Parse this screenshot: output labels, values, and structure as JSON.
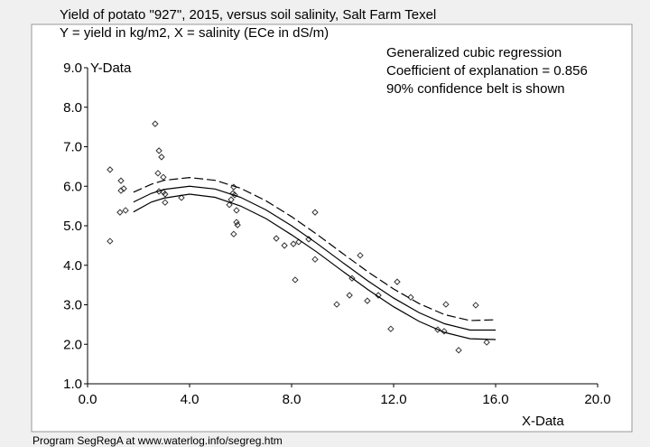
{
  "chart_data": {
    "type": "scatter",
    "title": "Yield of potato \"927\", 2015, versus soil salinity, Salt Farm Texel",
    "subtitle": "Y = yield in kg/m2,  X = salinity (ECe in dS/m)",
    "annotations": [
      "Generalized cubic regression",
      "Coefficient of explanation = 0.856",
      "90% confidence belt is shown"
    ],
    "x_label": "X-Data",
    "y_label": "Y-Data",
    "footer": "Program SegRegA at www.waterlog.info/segreg.htm",
    "xlim": [
      0,
      20
    ],
    "ylim": [
      1,
      9
    ],
    "xticks": [
      {
        "value": 0,
        "label": "0.0"
      },
      {
        "value": 4,
        "label": "4.0"
      },
      {
        "value": 8,
        "label": "8.0"
      },
      {
        "value": 12,
        "label": "12.0"
      },
      {
        "value": 16,
        "label": "16.0"
      },
      {
        "value": 20,
        "label": "20.0"
      }
    ],
    "yticks": [
      {
        "value": 1,
        "label": "1.0"
      },
      {
        "value": 2,
        "label": "2.0"
      },
      {
        "value": 3,
        "label": "3.0"
      },
      {
        "value": 4,
        "label": "4.0"
      },
      {
        "value": 5,
        "label": "5.0"
      },
      {
        "value": 6,
        "label": "6.0"
      },
      {
        "value": 7,
        "label": "7.0"
      },
      {
        "value": 8,
        "label": "8.0"
      },
      {
        "value": 9,
        "label": "9.0"
      }
    ],
    "marker_color": "#333333",
    "x": [
      0.88,
      0.88,
      1.31,
      1.31,
      1.42,
      1.27,
      1.49,
      2.65,
      2.8,
      2.9,
      2.76,
      2.97,
      2.8,
      2.97,
      3.04,
      3.04,
      3.68,
      5.56,
      5.63,
      5.7,
      5.77,
      5.73,
      5.84,
      5.84,
      5.88,
      5.73,
      7.4,
      7.72,
      8.07,
      8.28,
      8.14,
      8.67,
      8.92,
      8.92,
      9.77,
      10.27,
      10.37,
      10.69,
      10.97,
      11.4,
      11.89,
      12.14,
      12.67,
      13.73,
      13.98,
      14.05,
      14.55,
      15.22,
      15.65
    ],
    "values": [
      6.42,
      4.61,
      6.14,
      5.89,
      5.94,
      5.34,
      5.39,
      7.58,
      6.9,
      6.74,
      6.33,
      6.23,
      5.87,
      5.85,
      5.8,
      5.59,
      5.71,
      5.53,
      5.66,
      5.82,
      5.78,
      5.98,
      5.39,
      5.09,
      5.02,
      4.79,
      4.68,
      4.5,
      4.54,
      4.59,
      3.63,
      4.66,
      5.34,
      4.15,
      3.01,
      3.24,
      3.67,
      4.25,
      3.1,
      3.24,
      2.39,
      3.58,
      3.19,
      2.37,
      2.33,
      3.01,
      1.85,
      2.99,
      2.05
    ],
    "fit_x": [
      1.8,
      2.5,
      3,
      4,
      5,
      6,
      7,
      8,
      9,
      10,
      11,
      12,
      13,
      14,
      15,
      16
    ],
    "fit_lines": [
      {
        "style": "dashed",
        "color": "#000000",
        "values": [
          5.85,
          6.05,
          6.15,
          6.22,
          6.15,
          5.95,
          5.63,
          5.23,
          4.78,
          4.3,
          3.83,
          3.4,
          3.03,
          2.75,
          2.6,
          2.62
        ]
      },
      {
        "style": "solid",
        "color": "#000000",
        "values": [
          5.6,
          5.82,
          5.92,
          6.0,
          5.93,
          5.72,
          5.4,
          5.0,
          4.55,
          4.07,
          3.6,
          3.17,
          2.8,
          2.52,
          2.36,
          2.36
        ]
      },
      {
        "style": "solid",
        "color": "#000000",
        "values": [
          5.35,
          5.6,
          5.7,
          5.8,
          5.72,
          5.5,
          5.18,
          4.77,
          4.33,
          3.85,
          3.38,
          2.95,
          2.58,
          2.3,
          2.14,
          2.12
        ]
      }
    ]
  }
}
